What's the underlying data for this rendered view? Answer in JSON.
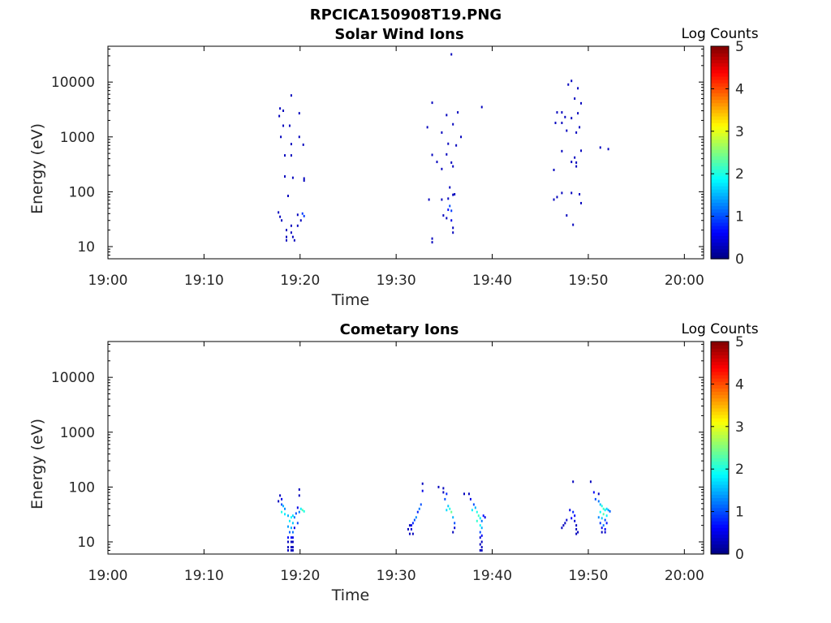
{
  "figure_title": "RPCICA150908T19.PNG",
  "chart_data": [
    {
      "type": "heatmap",
      "title": "Solar Wind Ions",
      "xlabel": "Time",
      "ylabel": "Energy (eV)",
      "xlim": [
        "19:00",
        "20:02"
      ],
      "ylim": [
        6,
        45000
      ],
      "yscale": "log",
      "xticks": [
        "19:00",
        "19:10",
        "19:20",
        "19:30",
        "19:40",
        "19:50",
        "20:00"
      ],
      "yticks": [
        "10",
        "100",
        "1000",
        "10000"
      ],
      "colorbar": {
        "label": "Log Counts",
        "range": [
          0,
          5
        ],
        "ticks": [
          "0",
          "1",
          "2",
          "3",
          "4",
          "5"
        ],
        "colormap": "jet"
      },
      "grid": false,
      "cells": [
        [
          "19:17:50",
          3300,
          0.3
        ],
        [
          "19:18:10",
          3000,
          0.3
        ],
        [
          "19:17:45",
          2400,
          0.3
        ],
        [
          "19:19:00",
          5700,
          0.3
        ],
        [
          "19:19:50",
          2700,
          0.3
        ],
        [
          "19:18:10",
          1600,
          0.3
        ],
        [
          "19:18:50",
          1600,
          0.3
        ],
        [
          "19:19:50",
          1000,
          0.3
        ],
        [
          "19:17:55",
          1000,
          0.3
        ],
        [
          "19:19:00",
          740,
          0.3
        ],
        [
          "19:20:15",
          720,
          0.3
        ],
        [
          "19:18:20",
          460,
          0.3
        ],
        [
          "19:19:00",
          460,
          0.3
        ],
        [
          "19:18:20",
          190,
          0.3
        ],
        [
          "19:19:10",
          180,
          0.3
        ],
        [
          "19:20:20",
          175,
          0.3
        ],
        [
          "19:20:20",
          160,
          0.3
        ],
        [
          "19:18:40",
          84,
          0.3
        ],
        [
          "19:17:40",
          42,
          0.3
        ],
        [
          "19:17:50",
          35,
          0.3
        ],
        [
          "19:18:00",
          30,
          0.3
        ],
        [
          "19:20:10",
          40,
          0.9
        ],
        [
          "19:20:20",
          36,
          0.9
        ],
        [
          "19:19:40",
          38,
          0.3
        ],
        [
          "19:20:00",
          30,
          0.3
        ],
        [
          "19:19:00",
          24,
          0.3
        ],
        [
          "19:19:40",
          24,
          0.3
        ],
        [
          "19:18:30",
          20,
          0.3
        ],
        [
          "19:19:00",
          18,
          0.3
        ],
        [
          "19:18:30",
          15,
          0.3
        ],
        [
          "19:19:10",
          15,
          0.3
        ],
        [
          "19:18:30",
          13,
          0.3
        ],
        [
          "19:19:20",
          13,
          0.3
        ],
        [
          "19:35:40",
          32000,
          0.3
        ],
        [
          "19:33:40",
          4200,
          0.3
        ],
        [
          "19:35:10",
          2500,
          0.3
        ],
        [
          "19:36:20",
          2800,
          0.3
        ],
        [
          "19:33:10",
          1500,
          0.3
        ],
        [
          "19:35:50",
          1700,
          0.3
        ],
        [
          "19:36:40",
          1000,
          0.3
        ],
        [
          "19:34:40",
          1200,
          0.3
        ],
        [
          "19:35:20",
          750,
          0.3
        ],
        [
          "19:36:10",
          700,
          0.3
        ],
        [
          "19:33:40",
          470,
          0.3
        ],
        [
          "19:35:10",
          480,
          0.3
        ],
        [
          "19:34:10",
          350,
          0.3
        ],
        [
          "19:35:40",
          340,
          0.3
        ],
        [
          "19:35:50",
          290,
          0.3
        ],
        [
          "19:34:40",
          260,
          0.3
        ],
        [
          "19:38:50",
          3500,
          0.3
        ],
        [
          "19:35:30",
          120,
          0.3
        ],
        [
          "19:35:50",
          88,
          0.3
        ],
        [
          "19:36:00",
          90,
          0.3
        ],
        [
          "19:33:20",
          72,
          0.3
        ],
        [
          "19:34:40",
          72,
          0.3
        ],
        [
          "19:35:20",
          75,
          0.3
        ],
        [
          "19:35:30",
          55,
          1.0
        ],
        [
          "19:35:20",
          47,
          0.7
        ],
        [
          "19:35:40",
          45,
          0.9
        ],
        [
          "19:34:50",
          37,
          0.3
        ],
        [
          "19:35:10",
          33,
          0.3
        ],
        [
          "19:35:40",
          30,
          0.5
        ],
        [
          "19:35:50",
          22,
          0.3
        ],
        [
          "19:35:50",
          18,
          0.3
        ],
        [
          "19:33:40",
          14,
          0.3
        ],
        [
          "19:33:40",
          12,
          0.3
        ],
        [
          "19:48:10",
          10500,
          0.3
        ],
        [
          "19:47:50",
          9000,
          0.3
        ],
        [
          "19:48:50",
          7700,
          0.3
        ],
        [
          "19:48:30",
          5000,
          0.3
        ],
        [
          "19:49:10",
          4100,
          0.3
        ],
        [
          "19:46:40",
          2800,
          0.3
        ],
        [
          "19:47:10",
          2800,
          0.3
        ],
        [
          "19:48:50",
          2700,
          0.3
        ],
        [
          "19:47:30",
          2300,
          0.3
        ],
        [
          "19:48:10",
          2200,
          0.3
        ],
        [
          "19:46:30",
          1800,
          0.3
        ],
        [
          "19:47:10",
          1800,
          0.3
        ],
        [
          "19:49:00",
          1500,
          0.3
        ],
        [
          "19:47:40",
          1300,
          0.3
        ],
        [
          "19:48:40",
          1200,
          0.3
        ],
        [
          "19:47:10",
          550,
          0.3
        ],
        [
          "19:49:10",
          560,
          0.3
        ],
        [
          "19:48:30",
          420,
          0.3
        ],
        [
          "19:48:10",
          350,
          0.3
        ],
        [
          "19:48:40",
          340,
          0.3
        ],
        [
          "19:48:40",
          290,
          0.3
        ],
        [
          "19:46:20",
          250,
          0.3
        ],
        [
          "19:51:10",
          640,
          0.3
        ],
        [
          "19:52:00",
          600,
          0.3
        ],
        [
          "19:47:10",
          95,
          0.3
        ],
        [
          "19:48:10",
          95,
          0.3
        ],
        [
          "19:49:00",
          90,
          0.3
        ],
        [
          "19:46:20",
          72,
          0.3
        ],
        [
          "19:46:40",
          80,
          0.3
        ],
        [
          "19:49:10",
          62,
          0.3
        ],
        [
          "19:47:40",
          37,
          0.3
        ],
        [
          "19:48:20",
          25,
          0.3
        ]
      ]
    },
    {
      "type": "heatmap",
      "title": "Cometary Ions",
      "xlabel": "Time",
      "ylabel": "Energy (eV)",
      "xlim": [
        "19:00",
        "20:02"
      ],
      "ylim": [
        6,
        45000
      ],
      "yscale": "log",
      "xticks": [
        "19:00",
        "19:10",
        "19:20",
        "19:30",
        "19:40",
        "19:50",
        "20:00"
      ],
      "yticks": [
        "10",
        "100",
        "1000",
        "10000"
      ],
      "colorbar": {
        "label": "Log Counts",
        "range": [
          0,
          5
        ],
        "ticks": [
          "0",
          "1",
          "2",
          "3",
          "4",
          "5"
        ],
        "colormap": "jet"
      },
      "grid": false,
      "cells": [
        [
          "19:17:50",
          70,
          0.3
        ],
        [
          "19:18:00",
          60,
          0.5
        ],
        [
          "19:17:40",
          55,
          0.3
        ],
        [
          "19:19:50",
          90,
          0.3
        ],
        [
          "19:19:50",
          70,
          0.3
        ],
        [
          "19:18:00",
          48,
          1.0
        ],
        [
          "19:18:10",
          45,
          1.5
        ],
        [
          "19:18:20",
          40,
          1.3
        ],
        [
          "19:18:00",
          35,
          2.0
        ],
        [
          "19:18:20",
          32,
          1.8
        ],
        [
          "19:19:40",
          42,
          0.5
        ],
        [
          "19:20:00",
          40,
          1.8
        ],
        [
          "19:20:10",
          38,
          2.3
        ],
        [
          "19:19:50",
          35,
          1.2
        ],
        [
          "19:20:20",
          36,
          2.0
        ],
        [
          "19:19:30",
          33,
          1.0
        ],
        [
          "19:18:40",
          30,
          1.5
        ],
        [
          "19:19:00",
          28,
          1.9
        ],
        [
          "19:19:10",
          30,
          1.7
        ],
        [
          "19:19:20",
          28,
          1.2
        ],
        [
          "19:18:50",
          24,
          1.8
        ],
        [
          "19:19:10",
          22,
          1.6
        ],
        [
          "19:19:40",
          22,
          1.0
        ],
        [
          "19:18:40",
          19,
          1.4
        ],
        [
          "19:19:00",
          18,
          1.5
        ],
        [
          "19:19:20",
          18,
          0.5
        ],
        [
          "19:18:50",
          15,
          1.1
        ],
        [
          "19:19:10",
          15,
          1.2
        ],
        [
          "19:18:40",
          12,
          0.6
        ],
        [
          "19:19:00",
          12,
          0.6
        ],
        [
          "19:19:10",
          12,
          0.5
        ],
        [
          "19:18:40",
          10,
          0.3
        ],
        [
          "19:19:00",
          10,
          0.3
        ],
        [
          "19:19:10",
          10,
          0.3
        ],
        [
          "19:18:40",
          8,
          0.3
        ],
        [
          "19:19:00",
          8,
          0.3
        ],
        [
          "19:19:10",
          8,
          0.3
        ],
        [
          "19:18:40",
          7,
          0.3
        ],
        [
          "19:19:00",
          7,
          0.3
        ],
        [
          "19:19:10",
          7,
          0.3
        ],
        [
          "19:32:40",
          115,
          0.3
        ],
        [
          "19:34:20",
          100,
          0.3
        ],
        [
          "19:34:50",
          95,
          0.3
        ],
        [
          "19:32:40",
          85,
          0.5
        ],
        [
          "19:34:50",
          80,
          0.3
        ],
        [
          "19:35:10",
          75,
          0.8
        ],
        [
          "19:37:00",
          75,
          0.3
        ],
        [
          "19:37:30",
          75,
          0.3
        ],
        [
          "19:35:00",
          60,
          1.0
        ],
        [
          "19:37:40",
          60,
          0.5
        ],
        [
          "19:32:30",
          48,
          1.0
        ],
        [
          "19:32:20",
          40,
          1.2
        ],
        [
          "19:35:20",
          45,
          1.6
        ],
        [
          "19:35:30",
          40,
          2.0
        ],
        [
          "19:35:40",
          35,
          2.4
        ],
        [
          "19:35:10",
          38,
          1.7
        ],
        [
          "19:32:10",
          35,
          0.8
        ],
        [
          "19:32:00",
          28,
          1.3
        ],
        [
          "19:31:50",
          25,
          1.0
        ],
        [
          "19:31:40",
          22,
          0.8
        ],
        [
          "19:31:30",
          20,
          0.5
        ],
        [
          "19:31:20",
          20,
          0.3
        ],
        [
          "19:31:30",
          17,
          0.4
        ],
        [
          "19:31:10",
          17,
          0.3
        ],
        [
          "19:31:20",
          14,
          0.3
        ],
        [
          "19:31:40",
          14,
          0.3
        ],
        [
          "19:35:50",
          28,
          1.5
        ],
        [
          "19:36:00",
          22,
          1.0
        ],
        [
          "19:36:00",
          18,
          0.4
        ],
        [
          "19:35:50",
          15,
          0.3
        ],
        [
          "19:38:00",
          48,
          1.0
        ],
        [
          "19:38:10",
          42,
          1.5
        ],
        [
          "19:37:50",
          38,
          1.8
        ],
        [
          "19:38:20",
          35,
          2.0
        ],
        [
          "19:38:30",
          30,
          2.2
        ],
        [
          "19:38:40",
          27,
          1.8
        ],
        [
          "19:38:20",
          24,
          2.1
        ],
        [
          "19:38:50",
          24,
          1.2
        ],
        [
          "19:39:00",
          30,
          0.7
        ],
        [
          "19:39:10",
          28,
          0.5
        ],
        [
          "19:38:40",
          20,
          1.9
        ],
        [
          "19:38:50",
          18,
          1.5
        ],
        [
          "19:38:40",
          15,
          1.0
        ],
        [
          "19:38:50",
          13,
          0.6
        ],
        [
          "19:38:40",
          12,
          0.4
        ],
        [
          "19:38:50",
          10,
          0.3
        ],
        [
          "19:38:40",
          9,
          0.3
        ],
        [
          "19:38:50",
          8,
          0.3
        ],
        [
          "19:38:40",
          7,
          0.3
        ],
        [
          "19:38:50",
          7,
          0.3
        ],
        [
          "19:48:20",
          125,
          0.3
        ],
        [
          "19:50:10",
          125,
          0.3
        ],
        [
          "19:50:30",
          80,
          0.6
        ],
        [
          "19:51:00",
          75,
          0.3
        ],
        [
          "19:50:40",
          60,
          1.0
        ],
        [
          "19:51:00",
          55,
          1.2
        ],
        [
          "19:51:10",
          48,
          1.6
        ],
        [
          "19:51:20",
          45,
          2.0
        ],
        [
          "19:51:30",
          40,
          2.2
        ],
        [
          "19:51:40",
          38,
          1.9
        ],
        [
          "19:51:50",
          40,
          1.7
        ],
        [
          "19:52:00",
          38,
          1.4
        ],
        [
          "19:52:10",
          36,
          1.1
        ],
        [
          "19:51:10",
          35,
          1.9
        ],
        [
          "19:51:30",
          32,
          2.3
        ],
        [
          "19:51:50",
          30,
          1.8
        ],
        [
          "19:51:00",
          28,
          1.3
        ],
        [
          "19:51:20",
          27,
          1.6
        ],
        [
          "19:51:40",
          25,
          1.0
        ],
        [
          "19:51:10",
          22,
          0.9
        ],
        [
          "19:51:30",
          20,
          1.2
        ],
        [
          "19:51:50",
          22,
          0.7
        ],
        [
          "19:51:20",
          18,
          0.5
        ],
        [
          "19:51:40",
          17,
          0.6
        ],
        [
          "19:51:20",
          15,
          0.3
        ],
        [
          "19:51:40",
          15,
          0.4
        ],
        [
          "19:48:00",
          38,
          0.5
        ],
        [
          "19:48:20",
          35,
          0.8
        ],
        [
          "19:48:30",
          30,
          0.6
        ],
        [
          "19:48:10",
          27,
          0.6
        ],
        [
          "19:47:40",
          25,
          0.4
        ],
        [
          "19:48:30",
          24,
          0.4
        ],
        [
          "19:47:30",
          22,
          0.3
        ],
        [
          "19:48:40",
          20,
          0.3
        ],
        [
          "19:47:20",
          20,
          0.3
        ],
        [
          "19:47:10",
          18,
          0.3
        ],
        [
          "19:48:40",
          17,
          0.3
        ],
        [
          "19:48:50",
          15,
          0.3
        ],
        [
          "19:48:40",
          14,
          0.3
        ]
      ]
    }
  ]
}
